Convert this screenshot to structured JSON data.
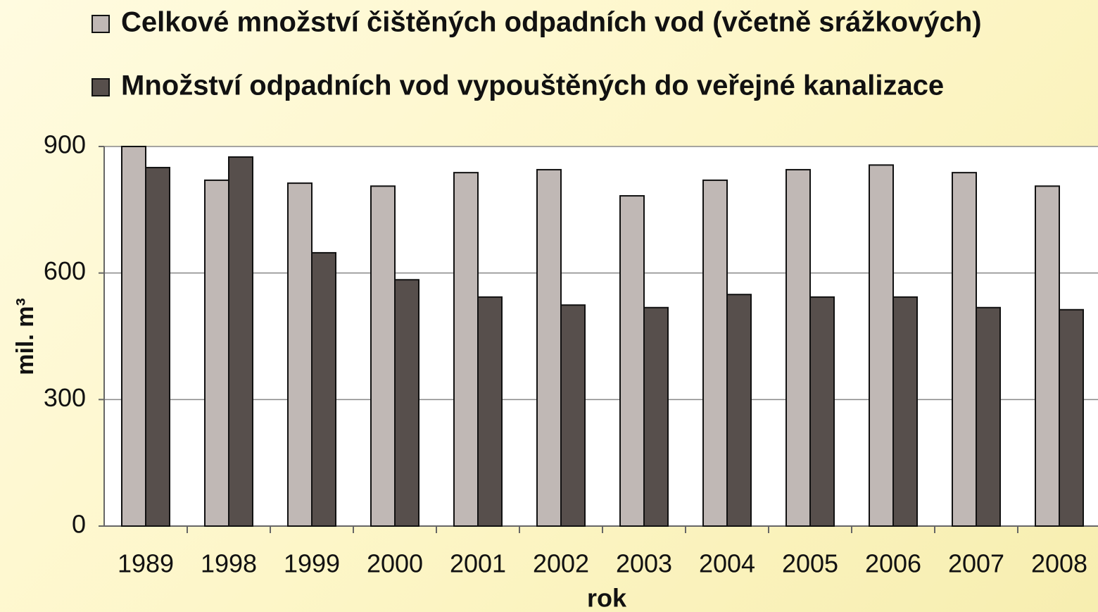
{
  "chart_data": {
    "type": "bar",
    "categories": [
      "1989",
      "1998",
      "1999",
      "2000",
      "2001",
      "2002",
      "2003",
      "2004",
      "2005",
      "2006",
      "2007",
      "2008"
    ],
    "series": [
      {
        "name": "Celkové množství čištěných odpadních vod (včetně srážkových)",
        "color": "#c0b8b5",
        "values": [
          900,
          820,
          813,
          806,
          838,
          845,
          783,
          820,
          845,
          856,
          838,
          806
        ]
      },
      {
        "name": "Množství odpadních vod vypouštěných do veřejné kanalizace",
        "color": "#574f4c",
        "values": [
          850,
          875,
          648,
          584,
          543,
          524,
          518,
          549,
          543,
          543,
          518,
          513
        ]
      }
    ],
    "ylim": [
      0,
      900
    ],
    "yticks": [
      0,
      300,
      600,
      900
    ],
    "grid": true,
    "xlabel": "rok",
    "ylabel": "mil. m³"
  }
}
